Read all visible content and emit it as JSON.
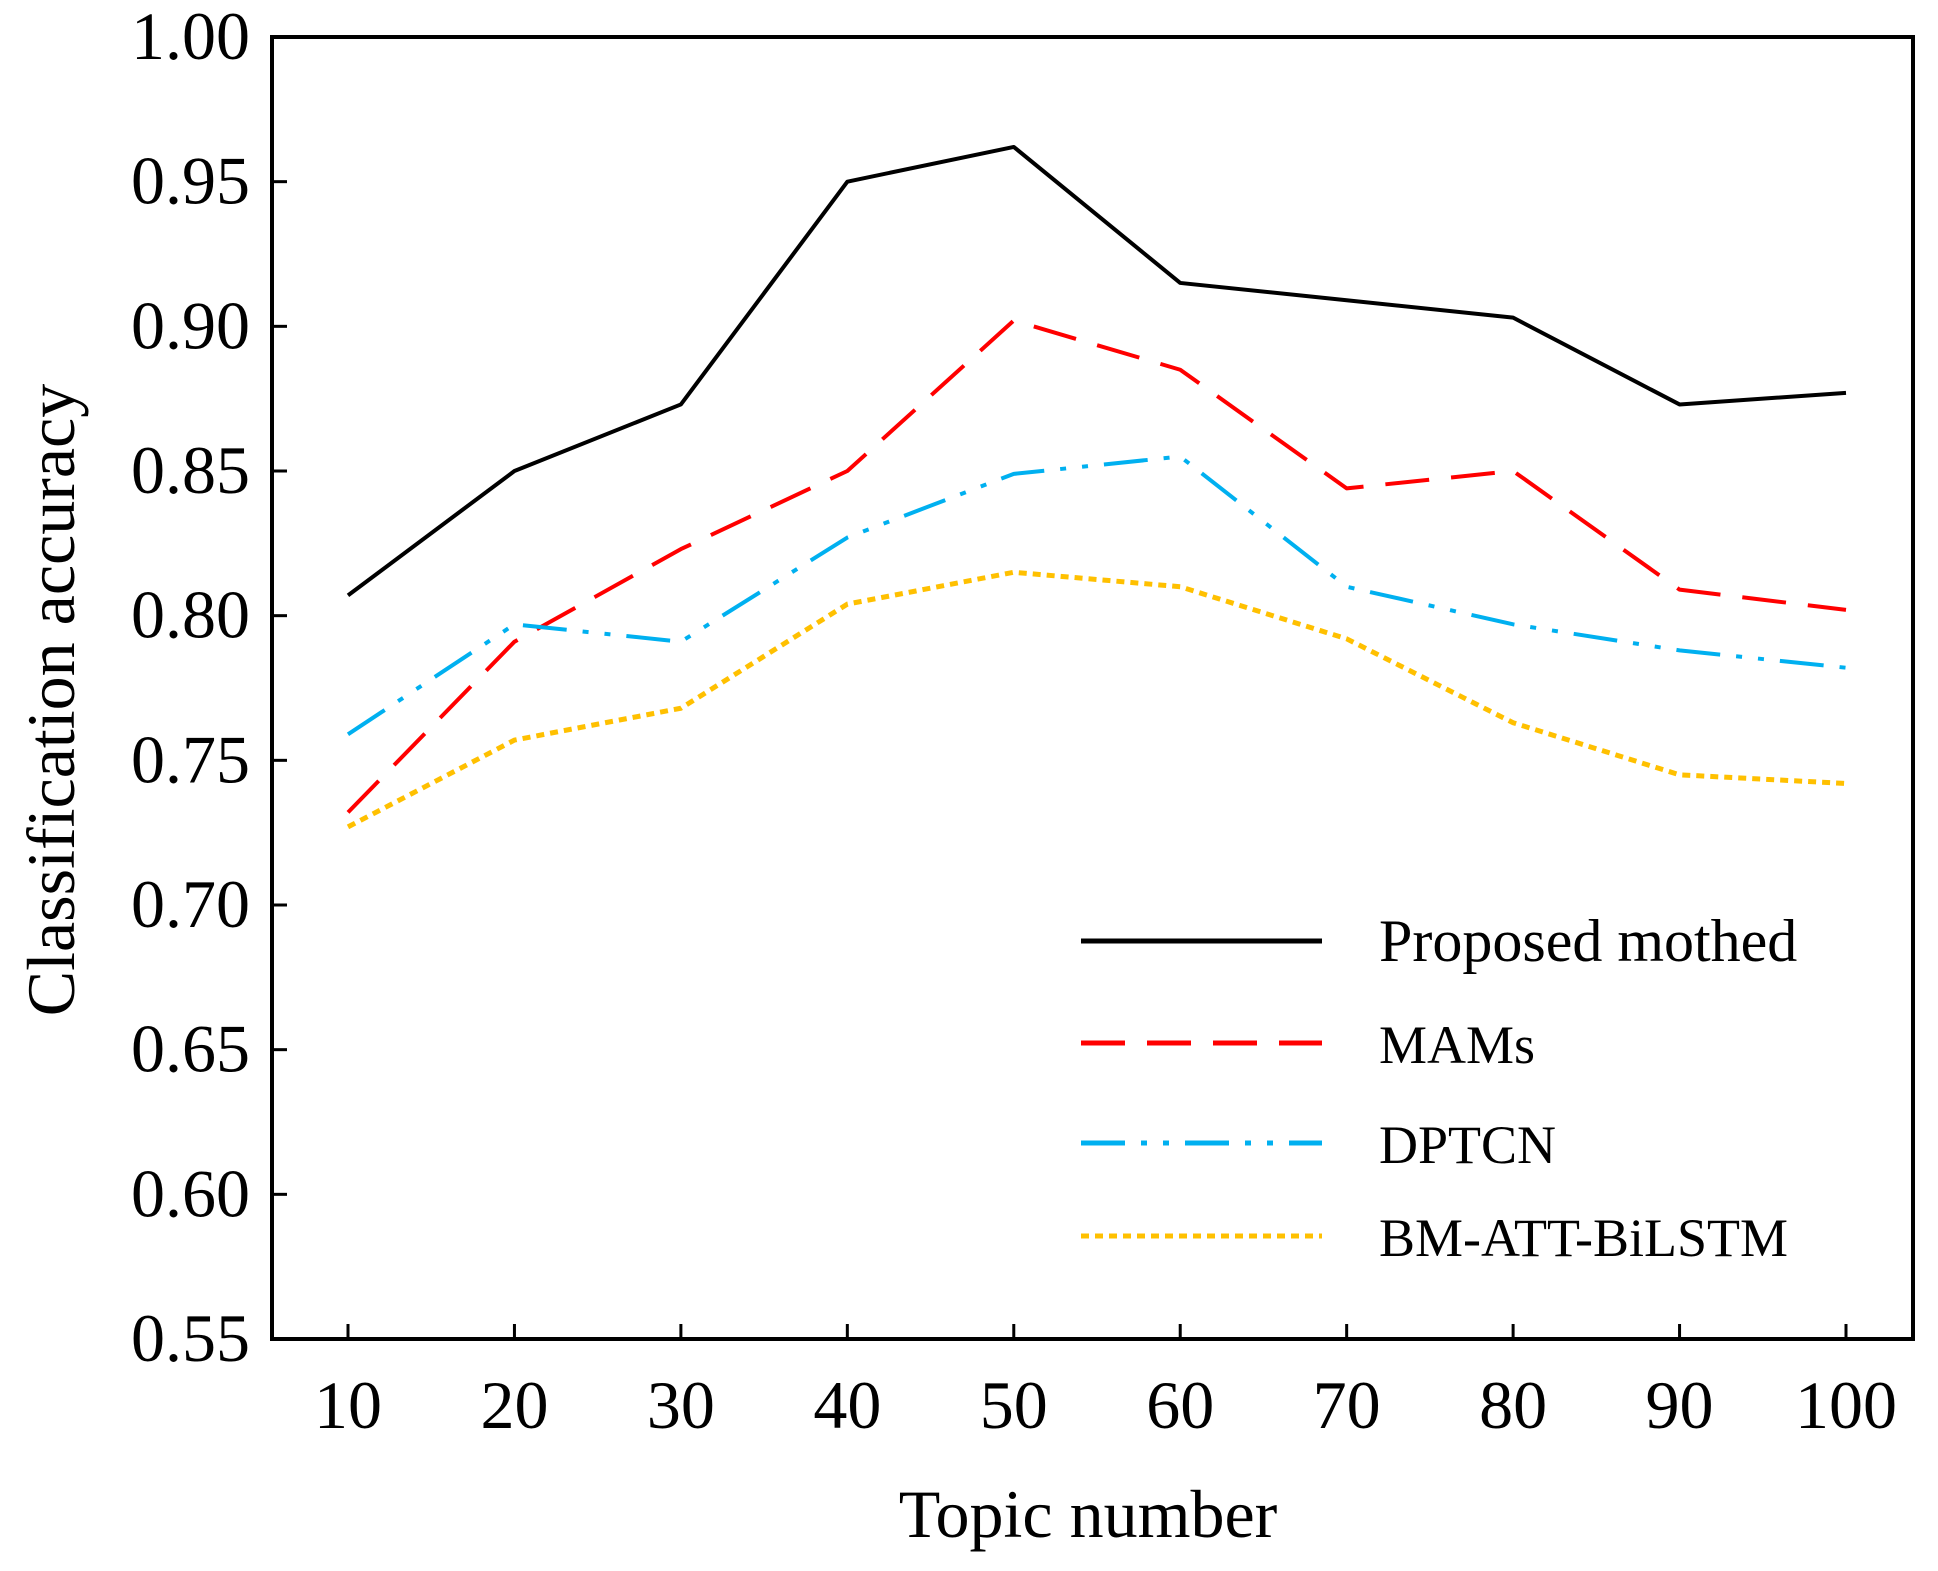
{
  "chart_data": {
    "type": "line",
    "title": "",
    "xlabel": "Topic number",
    "ylabel": "Classification accuracy",
    "x": [
      10,
      20,
      30,
      40,
      50,
      60,
      70,
      80,
      90,
      100
    ],
    "xticks": [
      "10",
      "20",
      "30",
      "40",
      "50",
      "60",
      "70",
      "80",
      "90",
      "100"
    ],
    "yticks": [
      "0.55",
      "0.60",
      "0.65",
      "0.70",
      "0.75",
      "0.80",
      "0.85",
      "0.90",
      "0.95",
      "1.00"
    ],
    "ylim": [
      0.55,
      1.0
    ],
    "grid": false,
    "legend_position": "bottom-right",
    "series": [
      {
        "name": "Proposed mothed",
        "color": "#000000",
        "dash": "solid",
        "values": [
          0.807,
          0.85,
          0.873,
          0.95,
          0.962,
          0.915,
          0.909,
          0.903,
          0.873,
          0.877
        ]
      },
      {
        "name": "MAMs",
        "color": "#ff0000",
        "dash": "dash",
        "values": [
          0.732,
          0.791,
          0.823,
          0.85,
          0.902,
          0.885,
          0.844,
          0.85,
          0.809,
          0.802
        ]
      },
      {
        "name": "DPTCN",
        "color": "#00b0f0",
        "dash": "dashdotdot",
        "values": [
          0.759,
          0.797,
          0.791,
          0.827,
          0.849,
          0.855,
          0.81,
          0.797,
          0.788,
          0.782
        ]
      },
      {
        "name": "BM-ATT-BiLSTM",
        "color": "#ffc000",
        "dash": "dot",
        "values": [
          0.727,
          0.757,
          0.768,
          0.804,
          0.815,
          0.81,
          0.792,
          0.763,
          0.745,
          0.742
        ]
      }
    ]
  }
}
